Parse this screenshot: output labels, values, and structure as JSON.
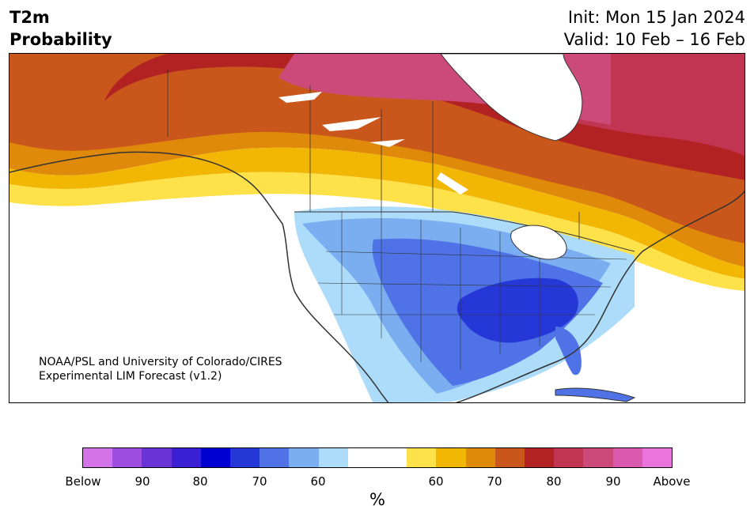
{
  "header": {
    "title_line1": "T2m",
    "title_line2": "Probability",
    "init": "Init: Mon 15 Jan 2024",
    "valid": "Valid: 10 Feb – 16 Feb"
  },
  "credit": {
    "line1": "NOAA/PSL and University of Colorado/CIRES",
    "line2": "Experimental LIM Forecast (v1.2)"
  },
  "colorbar": {
    "colors": [
      "#d472e8",
      "#9e4fe0",
      "#6a33d6",
      "#3a1fd4",
      "#0000d0",
      "#2637d8",
      "#4f73e6",
      "#7aaef0",
      "#acdcfa",
      "#ffffff",
      "#ffffff",
      "#ffe14a",
      "#f2b705",
      "#e08a0c",
      "#c9561a",
      "#b32222",
      "#c23552",
      "#cc4a7a",
      "#da5ab0",
      "#e874dc"
    ],
    "ticks": [
      "Below",
      "90",
      "80",
      "70",
      "60",
      "60",
      "70",
      "80",
      "90",
      "Above"
    ],
    "unit": "%"
  },
  "map": {
    "colors": {
      "land": "#ffffff",
      "ocean": "#ffffff",
      "border": "#333333"
    }
  }
}
